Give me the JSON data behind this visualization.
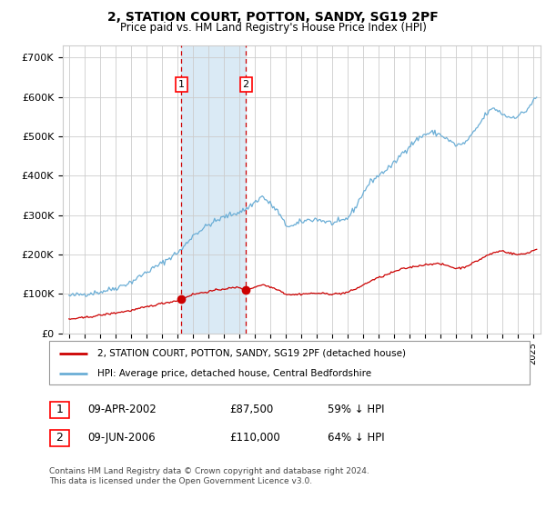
{
  "title": "2, STATION COURT, POTTON, SANDY, SG19 2PF",
  "subtitle": "Price paid vs. HM Land Registry's House Price Index (HPI)",
  "legend_line1": "2, STATION COURT, POTTON, SANDY, SG19 2PF (detached house)",
  "legend_line2": "HPI: Average price, detached house, Central Bedfordshire",
  "transaction1_date": "09-APR-2002",
  "transaction1_price": 87500,
  "transaction1_year": 2002.27,
  "transaction2_date": "09-JUN-2006",
  "transaction2_price": 110000,
  "transaction2_year": 2006.44,
  "footnote1": "Contains HM Land Registry data © Crown copyright and database right 2024.",
  "footnote2": "This data is licensed under the Open Government Licence v3.0.",
  "hpi_color": "#6baed6",
  "price_color": "#cc0000",
  "shade_color": "#daeaf5",
  "dashed_color": "#cc0000",
  "grid_color": "#cccccc",
  "ylim": [
    0,
    730000
  ],
  "xlim_start": 1994.6,
  "xlim_end": 2025.5,
  "hpi_anchors": [
    [
      1995.0,
      95000
    ],
    [
      1996.0,
      100000
    ],
    [
      1997.0,
      105000
    ],
    [
      1998.0,
      115000
    ],
    [
      1999.0,
      130000
    ],
    [
      2000.0,
      155000
    ],
    [
      2001.0,
      178000
    ],
    [
      2002.0,
      205000
    ],
    [
      2002.27,
      212000
    ],
    [
      2003.0,
      248000
    ],
    [
      2004.0,
      275000
    ],
    [
      2005.0,
      295000
    ],
    [
      2006.0,
      308000
    ],
    [
      2006.44,
      315000
    ],
    [
      2007.5,
      348000
    ],
    [
      2008.5,
      310000
    ],
    [
      2009.0,
      275000
    ],
    [
      2009.5,
      272000
    ],
    [
      2010.0,
      283000
    ],
    [
      2010.5,
      288000
    ],
    [
      2011.0,
      290000
    ],
    [
      2011.5,
      285000
    ],
    [
      2012.0,
      280000
    ],
    [
      2012.5,
      282000
    ],
    [
      2013.0,
      292000
    ],
    [
      2013.5,
      318000
    ],
    [
      2014.0,
      355000
    ],
    [
      2014.5,
      385000
    ],
    [
      2015.0,
      400000
    ],
    [
      2015.5,
      415000
    ],
    [
      2016.0,
      430000
    ],
    [
      2016.5,
      455000
    ],
    [
      2017.0,
      475000
    ],
    [
      2017.5,
      492000
    ],
    [
      2018.0,
      505000
    ],
    [
      2018.5,
      510000
    ],
    [
      2019.0,
      505000
    ],
    [
      2019.5,
      492000
    ],
    [
      2020.0,
      478000
    ],
    [
      2020.5,
      480000
    ],
    [
      2021.0,
      500000
    ],
    [
      2021.5,
      528000
    ],
    [
      2022.0,
      558000
    ],
    [
      2022.5,
      572000
    ],
    [
      2023.0,
      558000
    ],
    [
      2023.5,
      548000
    ],
    [
      2024.0,
      552000
    ],
    [
      2024.5,
      562000
    ],
    [
      2025.2,
      598000
    ]
  ],
  "price_anchors": [
    [
      1995.0,
      36000
    ],
    [
      1996.0,
      40000
    ],
    [
      1997.0,
      46000
    ],
    [
      1998.0,
      52000
    ],
    [
      1999.0,
      58000
    ],
    [
      2000.0,
      67000
    ],
    [
      2001.0,
      76000
    ],
    [
      2002.0,
      83000
    ],
    [
      2002.27,
      87500
    ],
    [
      2003.0,
      99000
    ],
    [
      2004.0,
      106000
    ],
    [
      2005.0,
      113000
    ],
    [
      2006.0,
      117000
    ],
    [
      2006.44,
      110000
    ],
    [
      2007.5,
      124000
    ],
    [
      2008.5,
      112000
    ],
    [
      2009.0,
      100000
    ],
    [
      2009.5,
      98000
    ],
    [
      2010.0,
      100000
    ],
    [
      2010.5,
      101000
    ],
    [
      2011.0,
      102000
    ],
    [
      2011.5,
      101000
    ],
    [
      2012.0,
      100000
    ],
    [
      2012.5,
      101000
    ],
    [
      2013.0,
      104000
    ],
    [
      2013.5,
      112000
    ],
    [
      2014.0,
      122000
    ],
    [
      2014.5,
      133000
    ],
    [
      2015.0,
      141000
    ],
    [
      2015.5,
      148000
    ],
    [
      2016.0,
      156000
    ],
    [
      2016.5,
      163000
    ],
    [
      2017.0,
      167000
    ],
    [
      2017.5,
      171000
    ],
    [
      2018.0,
      174000
    ],
    [
      2018.5,
      177000
    ],
    [
      2019.0,
      176000
    ],
    [
      2019.5,
      172000
    ],
    [
      2020.0,
      165000
    ],
    [
      2020.5,
      167000
    ],
    [
      2021.0,
      176000
    ],
    [
      2021.5,
      186000
    ],
    [
      2022.0,
      197000
    ],
    [
      2022.5,
      205000
    ],
    [
      2023.0,
      210000
    ],
    [
      2023.5,
      204000
    ],
    [
      2024.0,
      200000
    ],
    [
      2024.5,
      202000
    ],
    [
      2025.2,
      213000
    ]
  ]
}
